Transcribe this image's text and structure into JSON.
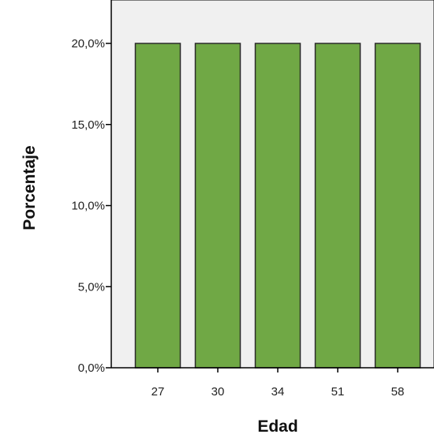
{
  "chart_data": {
    "type": "bar",
    "title": "",
    "xlabel": "Edad",
    "ylabel": "Porcentaje",
    "categories": [
      "27",
      "30",
      "34",
      "51",
      "58"
    ],
    "values": [
      20.0,
      20.0,
      20.0,
      20.0,
      20.0
    ],
    "ylim": [
      0,
      22
    ],
    "yticks": [
      0,
      5,
      10,
      15,
      20
    ],
    "ytick_labels": [
      "0,0%",
      "5,0%",
      "10,0%",
      "15,0%",
      "20,0%"
    ],
    "grid": false,
    "legend": "none",
    "colors": {
      "bar_fill": "#70a845",
      "bar_stroke": "#2b2b2b",
      "plot_background": "#f0f0f0",
      "axis": "#000000"
    }
  }
}
